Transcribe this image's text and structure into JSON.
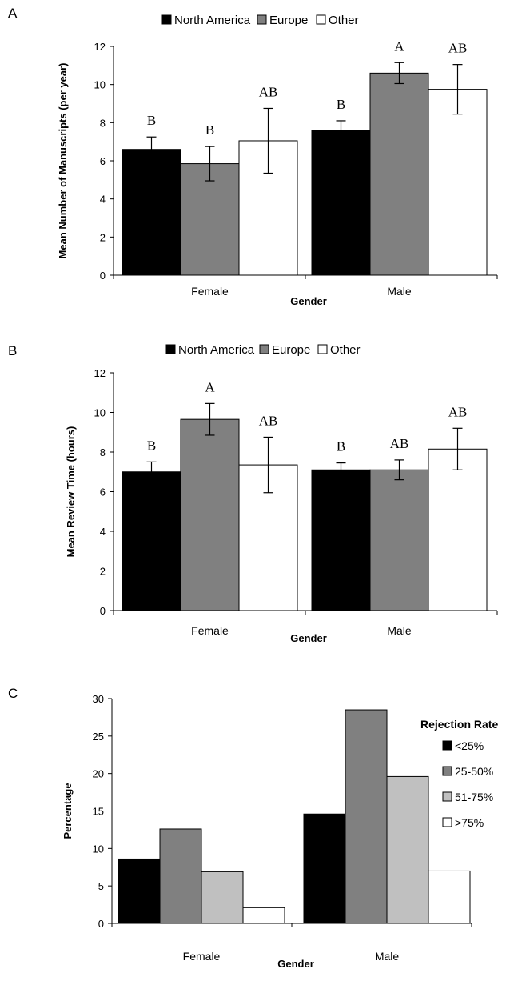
{
  "chart_data": [
    {
      "panel": "A",
      "type": "bar",
      "categories": [
        "Female",
        "Male"
      ],
      "xlabel": "Gender",
      "ylabel": "Mean Number of Manuscripts (per year)",
      "ylim": [
        0,
        12
      ],
      "yticks": [
        0,
        2,
        4,
        6,
        8,
        10,
        12
      ],
      "legend": "top",
      "series": [
        {
          "name": "North America",
          "color": "#000000",
          "values": [
            6.6,
            7.6
          ],
          "err": [
            0.65,
            0.5
          ],
          "labels": [
            "B",
            "B"
          ]
        },
        {
          "name": "Europe",
          "color": "#808080",
          "values": [
            5.85,
            10.6
          ],
          "err": [
            0.9,
            0.55
          ],
          "labels": [
            "B",
            "A"
          ]
        },
        {
          "name": "Other",
          "color": "#ffffff",
          "values": [
            7.05,
            9.75
          ],
          "err": [
            1.7,
            1.3
          ],
          "labels": [
            "AB",
            "AB"
          ]
        }
      ]
    },
    {
      "panel": "B",
      "type": "bar",
      "categories": [
        "Female",
        "Male"
      ],
      "xlabel": "Gender",
      "ylabel": "Mean Review Time (hours)",
      "ylim": [
        0,
        12
      ],
      "yticks": [
        0,
        2,
        4,
        6,
        8,
        10,
        12
      ],
      "legend": "top",
      "series": [
        {
          "name": "North America",
          "color": "#000000",
          "values": [
            7.0,
            7.1
          ],
          "err": [
            0.5,
            0.35
          ],
          "labels": [
            "B",
            "B"
          ]
        },
        {
          "name": "Europe",
          "color": "#808080",
          "values": [
            9.65,
            7.1
          ],
          "err": [
            0.8,
            0.5
          ],
          "labels": [
            "A",
            "AB"
          ]
        },
        {
          "name": "Other",
          "color": "#ffffff",
          "values": [
            7.35,
            8.15
          ],
          "err": [
            1.4,
            1.05
          ],
          "labels": [
            "AB",
            "AB"
          ]
        }
      ]
    },
    {
      "panel": "C",
      "type": "bar",
      "categories": [
        "Female",
        "Male"
      ],
      "xlabel": "Gender",
      "ylabel": "Percentage",
      "ylim": [
        0,
        30
      ],
      "yticks": [
        0,
        5,
        10,
        15,
        20,
        25,
        30
      ],
      "legend": "right",
      "legend_title": "Rejection Rate",
      "series": [
        {
          "name": "<25%",
          "color": "#000000",
          "values": [
            8.6,
            14.6
          ]
        },
        {
          "name": "25-50%",
          "color": "#808080",
          "values": [
            12.6,
            28.5
          ]
        },
        {
          "name": "51-75%",
          "color": "#c0c0c0",
          "values": [
            6.9,
            19.6
          ]
        },
        {
          "name": ">75%",
          "color": "#ffffff",
          "values": [
            2.1,
            7.0
          ]
        }
      ]
    }
  ]
}
